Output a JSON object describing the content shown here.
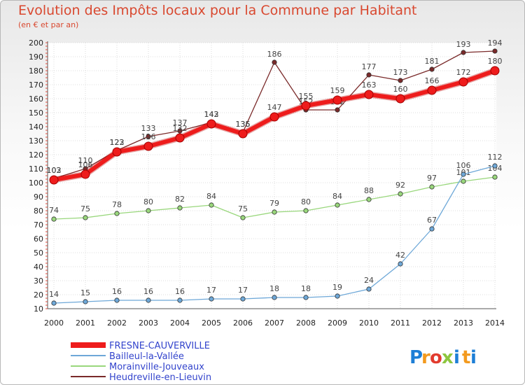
{
  "title": "Evolution des Impôts locaux pour la Commune par Habitant",
  "subtitle": "(en € et par an)",
  "logo": {
    "letters": [
      "P",
      "r",
      "o",
      "x",
      "i",
      "t",
      "i"
    ],
    "colors": [
      "#1e7fd6",
      "#f39a1e",
      "#e23b2e",
      "#8dc63f",
      "#1e7fd6",
      "#f39a1e",
      "#1e7fd6"
    ]
  },
  "chart_data": {
    "type": "line",
    "title": "Evolution des Impôts locaux pour la Commune par Habitant",
    "subtitle": "(en € et par an)",
    "xlabel": "",
    "ylabel": "",
    "x": [
      "2000",
      "2001",
      "2002",
      "2003",
      "2004",
      "2005",
      "2006",
      "2007",
      "2008",
      "2009",
      "2010",
      "2011",
      "2012",
      "2013",
      "2014"
    ],
    "ylim": [
      10,
      200
    ],
    "yticks": [
      10,
      20,
      30,
      40,
      50,
      60,
      70,
      80,
      90,
      100,
      110,
      120,
      130,
      140,
      150,
      160,
      170,
      180,
      190,
      200
    ],
    "grid": true,
    "legend_position": "bottom-left",
    "series": [
      {
        "name": "Heudreville-en-Lieuvin",
        "color": "#7a2a2a",
        "values": [
          103,
          110,
          123,
          133,
          137,
          143,
          136,
          186,
          152,
          152,
          177,
          173,
          181,
          193,
          194
        ],
        "labels": [
          "103",
          "110",
          "123",
          "133",
          "137",
          "143",
          "136",
          "186",
          "152",
          "152",
          "177",
          "173",
          "181",
          "193",
          "194"
        ]
      },
      {
        "name": "Morainville-Jouveaux",
        "color": "#99d77c",
        "values": [
          74,
          75,
          78,
          80,
          82,
          84,
          75,
          79,
          80,
          84,
          88,
          92,
          97,
          101,
          104
        ],
        "labels": [
          "74",
          "75",
          "78",
          "80",
          "82",
          "84",
          "75",
          "79",
          "80",
          "84",
          "88",
          "92",
          "97",
          "101",
          "104"
        ]
      },
      {
        "name": "Bailleul-la-Vallée",
        "color": "#6ea8d8",
        "values": [
          14,
          15,
          16,
          16,
          16,
          17,
          17,
          18,
          18,
          19,
          24,
          42,
          67,
          106,
          112
        ],
        "labels": [
          "14",
          "15",
          "16",
          "16",
          "16",
          "17",
          "17",
          "18",
          "18",
          "19",
          "24",
          "42",
          "67",
          "106",
          "112"
        ]
      },
      {
        "name": "FRESNE-CAUVERVILLE",
        "color": "#ee1c1c",
        "values": [
          102,
          106,
          122,
          126,
          132,
          142,
          135,
          147,
          155,
          159,
          163,
          160,
          166,
          172,
          180
        ],
        "labels": [
          "102",
          "106",
          "122",
          "126",
          "132",
          "142",
          "135",
          "147",
          "155",
          "159",
          "163",
          "160",
          "166",
          "172",
          "180"
        ]
      }
    ]
  }
}
